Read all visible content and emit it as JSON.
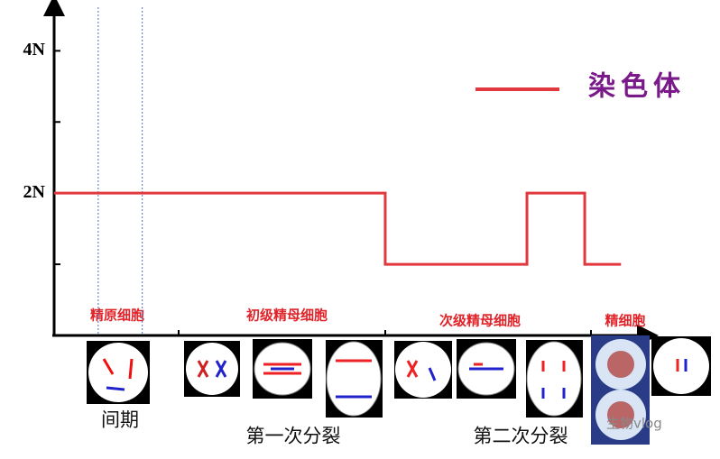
{
  "chart_data": {
    "type": "line",
    "series": [
      {
        "name": "染色体",
        "color": "#e0383e",
        "x": [
          0,
          55.6,
          55.6,
          79.4,
          79.4,
          89.1,
          89.1,
          95.2
        ],
        "values": [
          2,
          2,
          1,
          1,
          2,
          2,
          1,
          1
        ]
      }
    ],
    "xlim": [
      0,
      100
    ],
    "ylim": [
      0,
      4.6
    ],
    "yticks": [
      {
        "value": 1,
        "label": null
      },
      {
        "value": 2,
        "label": "2N"
      },
      {
        "value": 3,
        "label": null
      },
      {
        "value": 4,
        "label": "4N"
      }
    ],
    "vlines": [
      7.4,
      14.8
    ],
    "stages": [
      "精原细胞",
      "初级精母细胞",
      "次级精母细胞",
      "精细胞"
    ],
    "phases": [
      "间期",
      "第一次分裂",
      "第二次分裂"
    ]
  },
  "watermark": "生物vlog"
}
